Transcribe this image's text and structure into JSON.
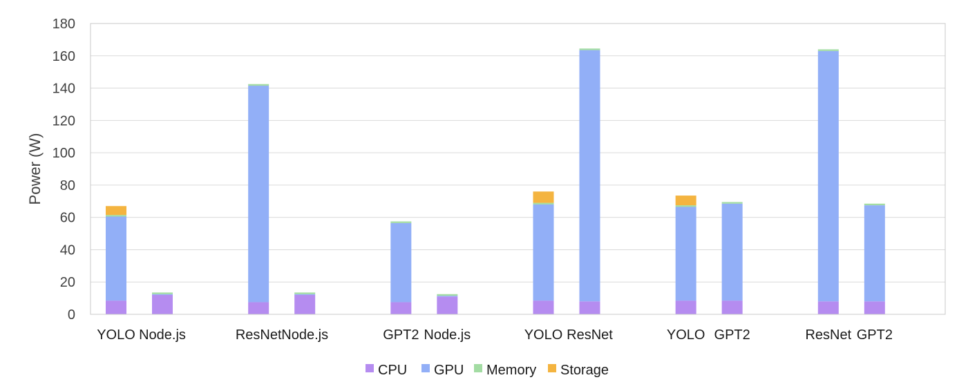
{
  "chart_data": {
    "type": "bar",
    "stacked": true,
    "title": "",
    "xlabel": "",
    "ylabel": "Power (W)",
    "ylim": [
      0,
      180
    ],
    "y_ticks": [
      0,
      20,
      40,
      60,
      80,
      100,
      120,
      140,
      160,
      180
    ],
    "grid": true,
    "legend_position": "bottom",
    "groups": [
      {
        "categories": [
          "YOLO",
          "Node.js"
        ]
      },
      {
        "categories": [
          "ResNet",
          "Node.js"
        ]
      },
      {
        "categories": [
          "GPT2",
          "Node.js"
        ]
      },
      {
        "categories": [
          "YOLO",
          "ResNet"
        ]
      },
      {
        "categories": [
          "YOLO",
          "GPT2"
        ]
      },
      {
        "categories": [
          "ResNet",
          "GPT2"
        ]
      }
    ],
    "categories": [
      "YOLO",
      "Node.js",
      "ResNet",
      "Node.js",
      "GPT2",
      "Node.js",
      "YOLO",
      "ResNet",
      "YOLO",
      "GPT2",
      "ResNet",
      "GPT2"
    ],
    "series": [
      {
        "name": "CPU",
        "color": "#b58cf0",
        "values": [
          8.5,
          12,
          7.5,
          12,
          7.5,
          11,
          8.5,
          8,
          8.5,
          8.5,
          8,
          8
        ]
      },
      {
        "name": "GPU",
        "color": "#92aff7",
        "values": [
          52,
          0.5,
          134,
          0.5,
          49,
          0.5,
          59.5,
          155.5,
          58,
          60,
          155,
          59.5
        ]
      },
      {
        "name": "Memory",
        "color": "#a3dca3",
        "values": [
          1,
          1,
          1,
          1,
          1,
          1,
          1,
          1,
          1,
          1,
          1,
          1
        ]
      },
      {
        "name": "Storage",
        "color": "#f4b440",
        "values": [
          5.5,
          0,
          0,
          0,
          0,
          0,
          7,
          0,
          6,
          0,
          0,
          0
        ]
      }
    ]
  }
}
